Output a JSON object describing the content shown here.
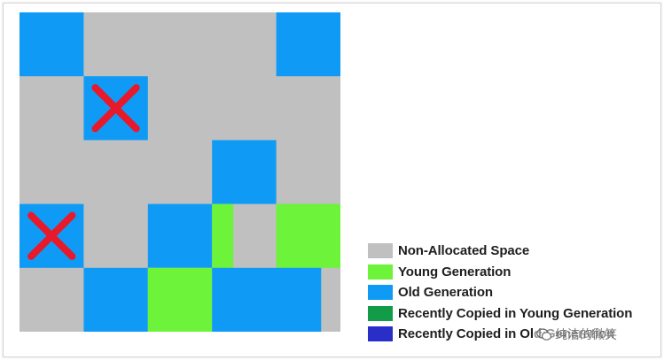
{
  "colors": {
    "non_allocated": "#c0c0c0",
    "young": "#6cf33a",
    "old": "#0f9bf5",
    "recent_young": "#139c48",
    "recent_old": "#2a2ec9",
    "mark": "#e8192a"
  },
  "legend": [
    {
      "label": "Non-Allocated Space",
      "color": "#c0c0c0"
    },
    {
      "label": "Young Generation",
      "color": "#6cf33a"
    },
    {
      "label": "Old Generation",
      "color": "#0f9bf5"
    },
    {
      "label": "Recently Copied in Young Generation",
      "color": "#139c48"
    },
    {
      "label": "Recently Copied in Old Generation",
      "color": "#2a2ec9"
    }
  ],
  "heap_grid": {
    "rows": 5,
    "cols": 5,
    "regions": [
      {
        "row": 0,
        "col": 0,
        "colspan": 1,
        "kind": "old"
      },
      {
        "row": 0,
        "col": 4,
        "colspan": 1,
        "kind": "old"
      },
      {
        "row": 1,
        "col": 1,
        "colspan": 1,
        "kind": "old",
        "marked": true
      },
      {
        "row": 2,
        "col": 3,
        "colspan": 1,
        "kind": "old"
      },
      {
        "row": 3,
        "col": 0,
        "colspan": 1,
        "kind": "old",
        "marked": true
      },
      {
        "row": 3,
        "col": 2,
        "colspan": 1,
        "kind": "old"
      },
      {
        "row": 3,
        "col": 3,
        "colspan": 0.33,
        "kind": "young"
      },
      {
        "row": 3,
        "col": 4,
        "colspan": 1,
        "kind": "young"
      },
      {
        "row": 4,
        "col": 1,
        "colspan": 1,
        "kind": "old"
      },
      {
        "row": 4,
        "col": 2,
        "colspan": 1,
        "kind": "young"
      },
      {
        "row": 4,
        "col": 3,
        "colspan": 1.7,
        "kind": "old"
      }
    ]
  },
  "watermark": {
    "icon": "wechat-icon",
    "text": "纯洁的微笑"
  }
}
